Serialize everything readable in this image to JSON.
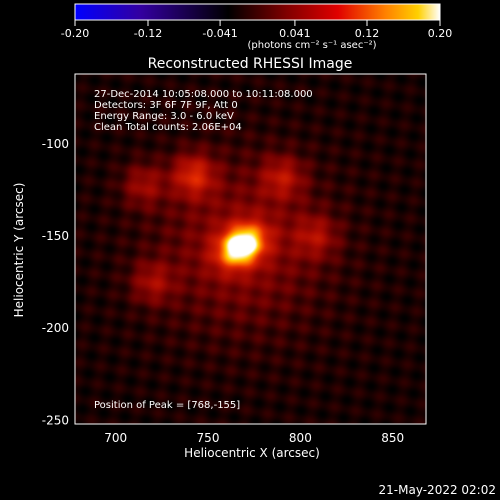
{
  "colorbar": {
    "ticks": [
      "-0.20",
      "-0.12",
      "-0.041",
      "0.041",
      "0.12",
      "0.20"
    ],
    "tick_values": [
      -0.2,
      -0.12,
      -0.041,
      0.041,
      0.12,
      0.2
    ],
    "range": [
      -0.2,
      0.2
    ],
    "units": "(photons cm⁻² s⁻¹ asec⁻²)",
    "colormap": [
      "#0000ff",
      "#3300a0",
      "#000000",
      "#800000",
      "#e00000",
      "#ff8000",
      "#ffd000",
      "#ffffff"
    ]
  },
  "chart_data": {
    "type": "heatmap",
    "title": "Reconstructed RHESSI Image",
    "xlabel": "Heliocentric X (arcsec)",
    "ylabel": "Heliocentric Y (arcsec)",
    "xlim": [
      678,
      868
    ],
    "ylim": [
      -252,
      -62
    ],
    "x_ticks": [
      700,
      750,
      800,
      850
    ],
    "y_ticks": [
      -100,
      -150,
      -200,
      -250
    ],
    "annotations": [
      "27-Dec-2014 10:05:08.000 to 10:11:08.000",
      "Detectors: 3F 6F 7F 9F, Att 0",
      "Energy Range: 3.0 - 6.0 keV",
      "Clean    Total counts: 2.06E+04"
    ],
    "peak_label": "Position of Peak = [768,-155]",
    "peak": {
      "x": 768,
      "y": -155,
      "value": 0.2
    },
    "secondary_sources": [
      {
        "x": 742,
        "y": -117,
        "value": 0.05
      },
      {
        "x": 790,
        "y": -118,
        "value": 0.035
      },
      {
        "x": 715,
        "y": -122,
        "value": 0.03
      },
      {
        "x": 808,
        "y": -150,
        "value": 0.03
      },
      {
        "x": 720,
        "y": -175,
        "value": 0.03
      }
    ]
  },
  "footer_date": "21-May-2022 02:02"
}
